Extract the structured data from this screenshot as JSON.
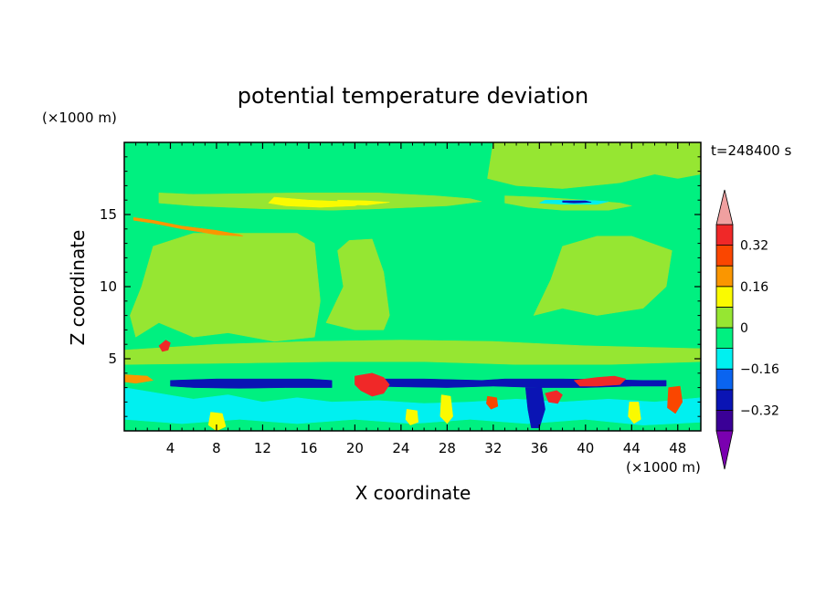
{
  "chart_data": {
    "type": "heatmap",
    "title": "potential temperature deviation",
    "time_label": "t=248400 s",
    "xlabel": "X coordinate",
    "ylabel": "Z coordinate",
    "x_unit": "(×1000 m)",
    "y_unit": "(×1000 m)",
    "xlim": [
      0,
      50
    ],
    "ylim": [
      0,
      20
    ],
    "x_ticks": [
      4,
      8,
      12,
      16,
      20,
      24,
      28,
      32,
      36,
      40,
      44,
      48
    ],
    "y_ticks": [
      5,
      10,
      15
    ],
    "colorbar": {
      "labels": [
        "0.32",
        "0.16",
        "0",
        "−0.16",
        "−0.32"
      ],
      "label_values": [
        0.32,
        0.16,
        0,
        -0.16,
        -0.32
      ],
      "levels": [
        -0.4,
        -0.32,
        -0.24,
        -0.16,
        -0.08,
        0,
        0.08,
        0.16,
        0.24,
        0.32,
        0.4
      ],
      "colors": [
        "#7a00b0",
        "#3a0096",
        "#0a14b4",
        "#0a64f0",
        "#00f0f0",
        "#00f080",
        "#96e632",
        "#fafa00",
        "#fa9600",
        "#fa4600",
        "#f02828",
        "#f0a0a0"
      ],
      "extend": "both"
    },
    "regions": [
      {
        "kind": "rect",
        "x0": 0,
        "x1": 50,
        "z0": 0,
        "z1": 20,
        "level": "-0.08..0"
      },
      {
        "kind": "poly",
        "level": "0..0.08",
        "pts": [
          [
            0.5,
            8
          ],
          [
            1.5,
            10
          ],
          [
            2.5,
            12.8
          ],
          [
            6,
            13.7
          ],
          [
            11,
            13.7
          ],
          [
            15,
            13.7
          ],
          [
            16.5,
            13
          ],
          [
            17,
            9
          ],
          [
            16.5,
            6.5
          ],
          [
            13,
            6.2
          ],
          [
            9,
            6.8
          ],
          [
            6,
            6.5
          ],
          [
            3,
            7.5
          ],
          [
            1,
            6.5
          ]
        ]
      },
      {
        "kind": "poly",
        "level": "0..0.08",
        "pts": [
          [
            17.5,
            7.5
          ],
          [
            19,
            10
          ],
          [
            18.5,
            12.5
          ],
          [
            19.5,
            13.2
          ],
          [
            21.5,
            13.3
          ],
          [
            22.5,
            11
          ],
          [
            23,
            8
          ],
          [
            22.5,
            7
          ],
          [
            20,
            7
          ]
        ]
      },
      {
        "kind": "poly",
        "level": "0..0.08",
        "pts": [
          [
            35.5,
            8
          ],
          [
            37,
            10.5
          ],
          [
            38,
            12.8
          ],
          [
            41,
            13.5
          ],
          [
            44,
            13.5
          ],
          [
            47.5,
            12.5
          ],
          [
            47,
            10
          ],
          [
            45,
            8.5
          ],
          [
            41,
            8
          ],
          [
            38,
            8.5
          ]
        ]
      },
      {
        "kind": "poly",
        "level": "0..0.08",
        "pts": [
          [
            31.5,
            17.5
          ],
          [
            32,
            20
          ],
          [
            50,
            20
          ],
          [
            50,
            17.8
          ],
          [
            48,
            17.5
          ],
          [
            46,
            17.8
          ],
          [
            43,
            17.2
          ],
          [
            38,
            16.8
          ],
          [
            34,
            17
          ]
        ]
      },
      {
        "kind": "poly",
        "level": "0..0.08",
        "pts": [
          [
            0,
            5.6
          ],
          [
            8,
            6
          ],
          [
            16,
            6.2
          ],
          [
            24,
            6.3
          ],
          [
            32,
            6.2
          ],
          [
            40,
            5.9
          ],
          [
            50,
            5.7
          ],
          [
            50,
            4.8
          ],
          [
            42,
            4.6
          ],
          [
            34,
            4.6
          ],
          [
            26,
            4.8
          ],
          [
            18,
            4.8
          ],
          [
            10,
            4.7
          ],
          [
            0,
            4.6
          ]
        ]
      },
      {
        "kind": "poly",
        "level": "0..0.08",
        "pts": [
          [
            3,
            16.5
          ],
          [
            6,
            16.4
          ],
          [
            15,
            16.5
          ],
          [
            22,
            16.5
          ],
          [
            27,
            16.3
          ],
          [
            30,
            16.1
          ],
          [
            31,
            15.9
          ],
          [
            28,
            15.6
          ],
          [
            22,
            15.4
          ],
          [
            18,
            15.3
          ],
          [
            12,
            15.4
          ],
          [
            6,
            15.6
          ],
          [
            3,
            15.8
          ]
        ]
      },
      {
        "kind": "poly",
        "level": "0..0.08",
        "pts": [
          [
            33,
            16.3
          ],
          [
            36,
            16.2
          ],
          [
            40,
            16.0
          ],
          [
            43,
            15.8
          ],
          [
            44,
            15.6
          ],
          [
            42,
            15.3
          ],
          [
            38,
            15.3
          ],
          [
            35,
            15.5
          ],
          [
            33,
            15.8
          ]
        ]
      },
      {
        "kind": "poly",
        "level": "0.08..0.16",
        "pts": [
          [
            13,
            16.2
          ],
          [
            16,
            16.0
          ],
          [
            19,
            15.9
          ],
          [
            21,
            15.9
          ],
          [
            20,
            15.6
          ],
          [
            17,
            15.5
          ],
          [
            14,
            15.6
          ],
          [
            12.5,
            15.8
          ]
        ]
      },
      {
        "kind": "poly",
        "level": "-0.16..-0.08",
        "pts": [
          [
            36.5,
            16.0
          ],
          [
            40,
            16.0
          ],
          [
            42,
            15.9
          ],
          [
            41,
            15.7
          ],
          [
            38,
            15.7
          ],
          [
            36,
            15.8
          ]
        ]
      },
      {
        "kind": "poly",
        "level": "-0.32..-0.24",
        "pts": [
          [
            38,
            15.95
          ],
          [
            40,
            15.95
          ],
          [
            40.5,
            15.85
          ],
          [
            39,
            15.8
          ],
          [
            38,
            15.85
          ]
        ]
      },
      {
        "kind": "poly",
        "level": "-0.08..0",
        "pts": [
          [
            0,
            3.6
          ],
          [
            50,
            3.6
          ],
          [
            50,
            0
          ],
          [
            0,
            0
          ]
        ]
      },
      {
        "kind": "poly",
        "level": "-0.16..-0.08",
        "pts": [
          [
            0,
            3.0
          ],
          [
            3,
            2.6
          ],
          [
            6,
            2.2
          ],
          [
            9,
            2.5
          ],
          [
            12,
            2.0
          ],
          [
            15,
            2.3
          ],
          [
            18,
            2.0
          ],
          [
            22,
            2.1
          ],
          [
            26,
            1.9
          ],
          [
            30,
            2.0
          ],
          [
            34,
            2.2
          ],
          [
            38,
            2.0
          ],
          [
            42,
            2.2
          ],
          [
            46,
            2.0
          ],
          [
            50,
            2.3
          ],
          [
            50,
            0.6
          ],
          [
            45,
            0.4
          ],
          [
            40,
            0.8
          ],
          [
            35,
            0.5
          ],
          [
            30,
            0.8
          ],
          [
            25,
            0.5
          ],
          [
            20,
            0.8
          ],
          [
            15,
            0.5
          ],
          [
            10,
            0.8
          ],
          [
            5,
            0.5
          ],
          [
            0,
            0.8
          ]
        ]
      },
      {
        "kind": "poly",
        "level": "-0.32..-0.24",
        "pts": [
          [
            4,
            3.5
          ],
          [
            8,
            3.6
          ],
          [
            12,
            3.6
          ],
          [
            16,
            3.6
          ],
          [
            18,
            3.5
          ],
          [
            18,
            3.0
          ],
          [
            14,
            3.0
          ],
          [
            10,
            2.95
          ],
          [
            6,
            3.0
          ],
          [
            4,
            3.1
          ]
        ]
      },
      {
        "kind": "poly",
        "level": "-0.32..-0.24",
        "pts": [
          [
            21,
            3.6
          ],
          [
            26,
            3.6
          ],
          [
            31,
            3.5
          ],
          [
            33,
            3.6
          ],
          [
            38,
            3.6
          ],
          [
            42,
            3.55
          ],
          [
            45,
            3.5
          ],
          [
            47,
            3.5
          ],
          [
            47,
            3.1
          ],
          [
            44,
            3.1
          ],
          [
            40,
            3.0
          ],
          [
            36,
            3.0
          ],
          [
            32,
            3.1
          ],
          [
            28,
            3.0
          ],
          [
            24,
            3.05
          ],
          [
            21,
            3.1
          ]
        ]
      },
      {
        "kind": "poly",
        "level": "-0.32..-0.24",
        "pts": [
          [
            34.8,
            3.0
          ],
          [
            36.2,
            3.0
          ],
          [
            36.5,
            1.5
          ],
          [
            36,
            0.2
          ],
          [
            35.3,
            0.2
          ],
          [
            35,
            1.5
          ]
        ]
      },
      {
        "kind": "poly",
        "level": "0.32..0.4",
        "pts": [
          [
            20,
            3.8
          ],
          [
            21.5,
            4.0
          ],
          [
            22.5,
            3.7
          ],
          [
            23,
            3.2
          ],
          [
            22.5,
            2.6
          ],
          [
            21.5,
            2.4
          ],
          [
            20.5,
            2.8
          ],
          [
            20,
            3.2
          ]
        ]
      },
      {
        "kind": "poly",
        "level": "0.32..0.4",
        "pts": [
          [
            39,
            3.5
          ],
          [
            41,
            3.7
          ],
          [
            42.5,
            3.8
          ],
          [
            43.5,
            3.6
          ],
          [
            43,
            3.2
          ],
          [
            41,
            3.1
          ],
          [
            39.5,
            3.1
          ]
        ]
      },
      {
        "kind": "poly",
        "level": "0.32..0.4",
        "pts": [
          [
            36.5,
            2.6
          ],
          [
            37.5,
            2.8
          ],
          [
            38,
            2.5
          ],
          [
            37.6,
            1.9
          ],
          [
            36.8,
            2.0
          ]
        ]
      },
      {
        "kind": "poly",
        "level": "0.32..0.4",
        "pts": [
          [
            3.0,
            5.9
          ],
          [
            3.6,
            6.3
          ],
          [
            4.0,
            6.1
          ],
          [
            3.8,
            5.6
          ],
          [
            3.3,
            5.5
          ]
        ]
      },
      {
        "kind": "poly",
        "level": "0.24..0.32",
        "pts": [
          [
            31.5,
            2.4
          ],
          [
            32.3,
            2.3
          ],
          [
            32.4,
            1.7
          ],
          [
            31.8,
            1.5
          ],
          [
            31.4,
            1.9
          ]
        ]
      },
      {
        "kind": "poly",
        "level": "0.24..0.32",
        "pts": [
          [
            47.2,
            3.0
          ],
          [
            48.2,
            3.1
          ],
          [
            48.4,
            2.0
          ],
          [
            47.8,
            1.2
          ],
          [
            47.1,
            1.6
          ]
        ]
      },
      {
        "kind": "poly",
        "level": "0.16..0.24",
        "pts": [
          [
            0,
            3.9
          ],
          [
            2,
            3.8
          ],
          [
            2.5,
            3.5
          ],
          [
            1,
            3.3
          ],
          [
            0,
            3.4
          ]
        ]
      },
      {
        "kind": "poly",
        "level": "0.08..0.16",
        "pts": [
          [
            7.5,
            1.3
          ],
          [
            8.5,
            1.2
          ],
          [
            8.8,
            0.3
          ],
          [
            8,
            0.0
          ],
          [
            7.3,
            0.4
          ]
        ]
      },
      {
        "kind": "poly",
        "level": "0.08..0.16",
        "pts": [
          [
            27.5,
            2.5
          ],
          [
            28.3,
            2.4
          ],
          [
            28.5,
            1.0
          ],
          [
            28,
            0.5
          ],
          [
            27.4,
            1.0
          ]
        ]
      },
      {
        "kind": "poly",
        "level": "0.08..0.16",
        "pts": [
          [
            43.8,
            2.0
          ],
          [
            44.6,
            2.0
          ],
          [
            44.8,
            0.8
          ],
          [
            44.2,
            0.5
          ],
          [
            43.7,
            1.0
          ]
        ]
      },
      {
        "kind": "poly",
        "level": "0.08..0.16",
        "pts": [
          [
            24.5,
            1.5
          ],
          [
            25.4,
            1.4
          ],
          [
            25.5,
            0.6
          ],
          [
            24.8,
            0.4
          ],
          [
            24.4,
            0.8
          ]
        ]
      },
      {
        "kind": "poly",
        "level": "0.16..0.24",
        "pts": [
          [
            0.8,
            14.8
          ],
          [
            2.5,
            14.6
          ],
          [
            5,
            14.2
          ],
          [
            8,
            13.9
          ],
          [
            10,
            13.6
          ],
          [
            10.3,
            13.5
          ],
          [
            8,
            13.6
          ],
          [
            5,
            14.0
          ],
          [
            2.5,
            14.4
          ],
          [
            0.8,
            14.6
          ]
        ]
      },
      {
        "kind": "poly",
        "level": "0.08..0.16",
        "pts": [
          [
            18.5,
            16.0
          ],
          [
            21,
            15.95
          ],
          [
            23,
            15.85
          ],
          [
            21,
            15.65
          ],
          [
            18.5,
            15.7
          ]
        ]
      }
    ]
  }
}
